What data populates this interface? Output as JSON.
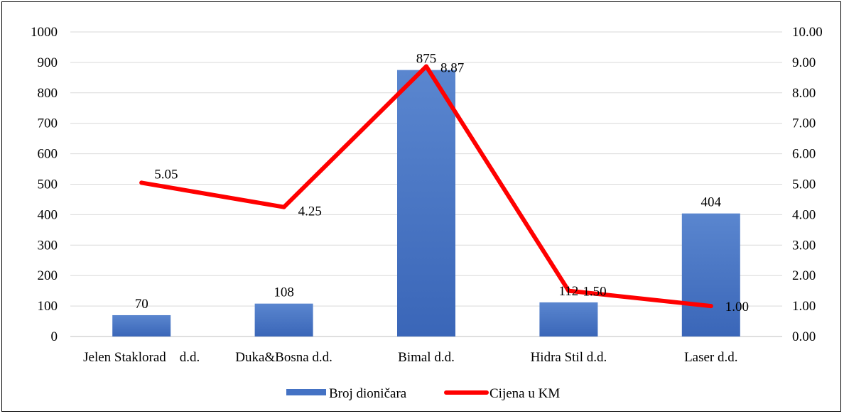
{
  "chart_data": {
    "type": "bar",
    "title": "",
    "categories": [
      "Jelen Staklorad    d.d.",
      "Duka&Bosna d.d.",
      "Bimal d.d.",
      "Hidra Stil d.d.",
      "Laser d.d."
    ],
    "series": [
      {
        "name": "Broj dioničara",
        "type": "bar",
        "axis": "left",
        "color": "#4472c4",
        "values": [
          70,
          108,
          875,
          112,
          404
        ],
        "labels": [
          "70",
          "108",
          "875",
          "112",
          "404"
        ]
      },
      {
        "name": "Cijena u KM",
        "type": "line",
        "axis": "right",
        "color": "#ff0000",
        "values": [
          5.05,
          4.25,
          8.87,
          1.5,
          1.0
        ],
        "labels": [
          "5.05",
          "4.25",
          "8.87",
          "1.50",
          "1.00"
        ]
      }
    ],
    "y_left": {
      "range": [
        0,
        1000
      ],
      "ticks": [
        "0",
        "100",
        "200",
        "300",
        "400",
        "500",
        "600",
        "700",
        "800",
        "900",
        "1000"
      ]
    },
    "y_right": {
      "range": [
        0,
        10
      ],
      "ticks": [
        "0.00",
        "1.00",
        "2.00",
        "3.00",
        "4.00",
        "5.00",
        "6.00",
        "7.00",
        "8.00",
        "9.00",
        "10.00"
      ]
    },
    "grid": "horizontal",
    "legend": "bottom",
    "gridline_color": "#d9d9d9"
  }
}
